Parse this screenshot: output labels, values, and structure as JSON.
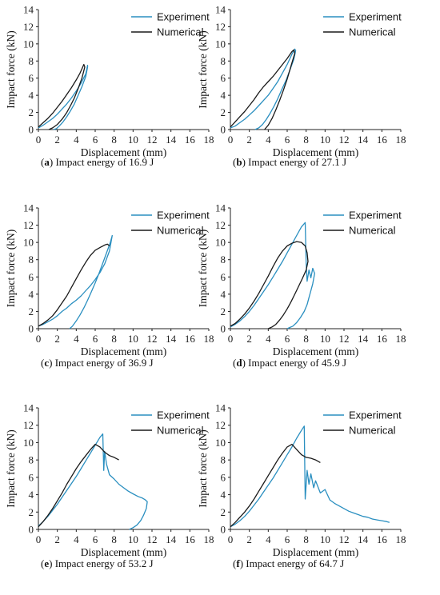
{
  "colors": {
    "experiment": "#2a8fc0",
    "numerical": "#1a1a1a",
    "axis": "#222222"
  },
  "chart_data": [
    {
      "type": "line",
      "tag": "(a)",
      "caption": "Impact energy of 16.9 J",
      "xlabel": "Displacement (mm)",
      "ylabel": "Impact force (kN)",
      "xlim": [
        0,
        18
      ],
      "ylim": [
        0,
        14
      ],
      "xticks": [
        "0",
        "2",
        "4",
        "6",
        "8",
        "10",
        "12",
        "14",
        "16",
        "18"
      ],
      "yticks": [
        "0",
        "2",
        "4",
        "6",
        "8",
        "10",
        "12",
        "14"
      ],
      "legend": "top-right",
      "series": [
        {
          "name": "Experiment",
          "x": [
            0,
            0.5,
            1,
            1.5,
            2,
            2.5,
            3,
            3.5,
            4,
            4.5,
            5,
            5.2,
            5.2,
            5,
            4.6,
            4.2,
            3.8,
            3.4,
            3,
            2.6,
            2.2,
            1.9,
            1.6
          ],
          "y": [
            0.2,
            0.5,
            0.9,
            1.3,
            1.8,
            2.4,
            3,
            3.7,
            4.5,
            5.4,
            6.5,
            7.5,
            7.3,
            6.2,
            5,
            4,
            3,
            2.2,
            1.5,
            0.9,
            0.4,
            0.1,
            0
          ]
        },
        {
          "name": "Numerical",
          "x": [
            0,
            0.5,
            1,
            1.5,
            2,
            2.5,
            3,
            3.5,
            4,
            4.4,
            4.8,
            4.9,
            4.6,
            4.2,
            3.8,
            3.4,
            3,
            2.5,
            2,
            1.5,
            1.1
          ],
          "y": [
            0.3,
            0.8,
            1.3,
            1.9,
            2.6,
            3.3,
            4.1,
            4.9,
            5.8,
            6.6,
            7.6,
            7.3,
            6,
            4.8,
            3.7,
            2.8,
            2,
            1.2,
            0.6,
            0.2,
            0
          ]
        }
      ]
    },
    {
      "type": "line",
      "tag": "(b)",
      "caption": "Impact energy of 27.1 J",
      "xlabel": "Displacement (mm)",
      "ylabel": "Impact force (kN)",
      "xlim": [
        0,
        18
      ],
      "ylim": [
        0,
        14
      ],
      "xticks": [
        "0",
        "2",
        "4",
        "6",
        "8",
        "10",
        "12",
        "14",
        "16",
        "18"
      ],
      "yticks": [
        "0",
        "2",
        "4",
        "6",
        "8",
        "10",
        "12",
        "14"
      ],
      "legend": "top-right",
      "series": [
        {
          "name": "Experiment",
          "x": [
            0,
            0.5,
            1,
            1.5,
            2,
            2.5,
            3,
            3.5,
            4,
            4.5,
            5,
            5.5,
            6,
            6.5,
            6.8,
            6.9,
            6.7,
            6.3,
            5.9,
            5.4,
            5,
            4.6,
            4.2,
            3.8,
            3.4,
            3,
            2.6
          ],
          "y": [
            0.2,
            0.4,
            0.8,
            1.2,
            1.7,
            2.2,
            2.8,
            3.4,
            4,
            4.8,
            5.6,
            6.6,
            7.6,
            8.8,
            9.4,
            9.2,
            8.2,
            7,
            5.8,
            4.6,
            3.6,
            2.7,
            1.9,
            1.2,
            0.6,
            0.2,
            0
          ]
        },
        {
          "name": "Numerical",
          "x": [
            0,
            0.5,
            1,
            1.5,
            2,
            2.5,
            3,
            3.5,
            4,
            4.5,
            5,
            5.5,
            6,
            6.5,
            6.7,
            6.8,
            6.4,
            6,
            5.6,
            5.2,
            4.8,
            4.4,
            4,
            3.6
          ],
          "y": [
            0.3,
            0.9,
            1.5,
            2.1,
            2.8,
            3.5,
            4.3,
            5,
            5.6,
            6.2,
            6.9,
            7.6,
            8.3,
            9.1,
            9.3,
            8.9,
            7.4,
            5.9,
            4.6,
            3.4,
            2.3,
            1.3,
            0.5,
            0
          ]
        }
      ]
    },
    {
      "type": "line",
      "tag": "(c)",
      "caption": "Impact energy of 36.9 J",
      "xlabel": "Displacement (mm)",
      "ylabel": "Impact force (kN)",
      "xlim": [
        0,
        18
      ],
      "ylim": [
        0,
        14
      ],
      "xticks": [
        "0",
        "2",
        "4",
        "6",
        "8",
        "10",
        "12",
        "14",
        "16",
        "18"
      ],
      "yticks": [
        "0",
        "2",
        "4",
        "6",
        "8",
        "10",
        "12",
        "14"
      ],
      "legend": "top-right",
      "series": [
        {
          "name": "Experiment",
          "x": [
            0,
            0.5,
            1,
            1.5,
            2,
            2.5,
            3,
            3.5,
            4,
            4.5,
            5,
            5.5,
            6,
            6.5,
            7,
            7.5,
            7.8,
            7.6,
            7.2,
            6.8,
            6.4,
            6,
            5.6,
            5.2,
            4.8,
            4.4,
            4,
            3.6,
            3.3
          ],
          "y": [
            0.3,
            0.5,
            0.8,
            1.1,
            1.5,
            2,
            2.4,
            2.9,
            3.3,
            3.8,
            4.4,
            5,
            5.7,
            6.5,
            7.5,
            9,
            10.8,
            10,
            8.8,
            7.6,
            6.4,
            5.3,
            4.3,
            3.3,
            2.4,
            1.6,
            0.9,
            0.3,
            0
          ]
        },
        {
          "name": "Numerical",
          "x": [
            0,
            0.5,
            1,
            1.5,
            2,
            2.5,
            3,
            3.5,
            4,
            4.5,
            5,
            5.5,
            6,
            6.5,
            7,
            7.3,
            7.5
          ],
          "y": [
            0.3,
            0.6,
            1,
            1.5,
            2.2,
            3,
            3.8,
            4.8,
            5.8,
            6.8,
            7.7,
            8.5,
            9.1,
            9.4,
            9.7,
            9.8,
            9.6
          ]
        }
      ]
    },
    {
      "type": "line",
      "tag": "(d)",
      "caption": "Impact energy of 45.9 J",
      "xlabel": "Displacement (mm)",
      "ylabel": "Impact force (kN)",
      "xlim": [
        0,
        18
      ],
      "ylim": [
        0,
        14
      ],
      "xticks": [
        "0",
        "2",
        "4",
        "6",
        "8",
        "10",
        "12",
        "14",
        "16",
        "18"
      ],
      "yticks": [
        "0",
        "2",
        "4",
        "6",
        "8",
        "10",
        "12",
        "14"
      ],
      "legend": "top-right",
      "series": [
        {
          "name": "Experiment",
          "x": [
            0,
            0.5,
            1,
            1.5,
            2,
            2.5,
            3,
            3.5,
            4,
            4.5,
            5,
            5.5,
            6,
            6.5,
            7,
            7.5,
            7.9,
            8,
            8.1,
            8.3,
            8.5,
            8.7,
            8.9,
            8.7,
            8.5,
            8.3,
            8.1,
            7.8,
            7.4,
            7,
            6.6,
            6.2,
            6
          ],
          "y": [
            0.2,
            0.5,
            0.9,
            1.4,
            2,
            2.7,
            3.5,
            4.3,
            5.1,
            6,
            6.9,
            7.8,
            8.8,
            9.8,
            10.8,
            11.8,
            12.3,
            7.6,
            5.5,
            6.8,
            5.9,
            7,
            6.4,
            5.2,
            4.4,
            3.6,
            2.8,
            2,
            1.3,
            0.7,
            0.3,
            0.1,
            0
          ]
        },
        {
          "name": "Numerical",
          "x": [
            0,
            0.5,
            1,
            1.5,
            2,
            2.5,
            3,
            3.5,
            4,
            4.5,
            5,
            5.5,
            6,
            6.5,
            7,
            7.5,
            7.9,
            8.1,
            8.2,
            8,
            7.6,
            7.2,
            6.8,
            6.4,
            6,
            5.6,
            5.2,
            4.8,
            4.4,
            4
          ],
          "y": [
            0.3,
            0.6,
            1.1,
            1.7,
            2.4,
            3.2,
            4.1,
            5.1,
            6.1,
            7.2,
            8.2,
            9,
            9.6,
            9.9,
            10.1,
            10,
            9.6,
            8.8,
            7.8,
            6.8,
            5.8,
            4.9,
            4,
            3.1,
            2.3,
            1.6,
            1,
            0.5,
            0.2,
            0
          ]
        }
      ]
    },
    {
      "type": "line",
      "tag": "(e)",
      "caption": "Impact energy of 53.2 J",
      "xlabel": "Displacement (mm)",
      "ylabel": "Impact force (kN)",
      "xlim": [
        0,
        18
      ],
      "ylim": [
        0,
        14
      ],
      "xticks": [
        "0",
        "2",
        "4",
        "6",
        "8",
        "10",
        "12",
        "14",
        "16",
        "18"
      ],
      "yticks": [
        "0",
        "2",
        "4",
        "6",
        "8",
        "10",
        "12",
        "14"
      ],
      "legend": "top-right",
      "series": [
        {
          "name": "Experiment",
          "x": [
            0,
            0.5,
            1,
            1.5,
            2,
            2.5,
            3,
            3.5,
            4,
            4.5,
            5,
            5.5,
            6,
            6.5,
            6.8,
            6.9,
            7,
            7.2,
            7.5,
            8,
            8.5,
            9,
            9.5,
            10,
            10.5,
            11,
            11.3,
            11.5,
            11.4,
            11.1,
            10.8,
            10.4,
            10,
            9.6
          ],
          "y": [
            0.4,
            0.9,
            1.5,
            2.2,
            2.9,
            3.7,
            4.5,
            5.3,
            6.1,
            7,
            7.9,
            8.8,
            9.7,
            10.6,
            11,
            6.8,
            9,
            7.5,
            6.3,
            5.8,
            5.2,
            4.8,
            4.4,
            4.1,
            3.8,
            3.6,
            3.4,
            3.2,
            2.4,
            1.6,
            1,
            0.5,
            0.2,
            0
          ]
        },
        {
          "name": "Numerical",
          "x": [
            0,
            0.5,
            1,
            1.5,
            2,
            2.5,
            3,
            3.5,
            4,
            4.5,
            5,
            5.5,
            6,
            6.5,
            7,
            7.5,
            8,
            8.5
          ],
          "y": [
            0.3,
            0.9,
            1.6,
            2.4,
            3.3,
            4.2,
            5.2,
            6.1,
            7,
            7.8,
            8.5,
            9.2,
            9.8,
            9.5,
            8.9,
            8.5,
            8.3,
            8
          ]
        }
      ]
    },
    {
      "type": "line",
      "tag": "(f)",
      "caption": "Impact energy of 64.7 J",
      "xlabel": "Displacement (mm)",
      "ylabel": "Impact force (kN)",
      "xlim": [
        0,
        18
      ],
      "ylim": [
        0,
        14
      ],
      "xticks": [
        "0",
        "2",
        "4",
        "6",
        "8",
        "10",
        "12",
        "14",
        "16",
        "18"
      ],
      "yticks": [
        "0",
        "2",
        "4",
        "6",
        "8",
        "10",
        "12",
        "14"
      ],
      "legend": "top-right",
      "series": [
        {
          "name": "Experiment",
          "x": [
            0,
            0.5,
            1,
            1.5,
            2,
            2.5,
            3,
            3.5,
            4,
            4.5,
            5,
            5.5,
            6,
            6.5,
            7,
            7.5,
            7.8,
            7.9,
            8.1,
            8.3,
            8.5,
            8.8,
            9,
            9.5,
            10,
            10.5,
            11,
            11.5,
            12,
            12.5,
            13,
            13.5,
            14,
            14.5,
            15,
            15.5,
            16,
            16.5,
            16.8
          ],
          "y": [
            0.3,
            0.6,
            1,
            1.5,
            2.1,
            2.8,
            3.5,
            4.3,
            5.1,
            5.9,
            6.8,
            7.7,
            8.6,
            9.5,
            10.5,
            11.4,
            11.9,
            3.5,
            6.8,
            5.2,
            6.4,
            4.8,
            5.6,
            4.2,
            4.6,
            3.4,
            3,
            2.7,
            2.4,
            2.1,
            1.9,
            1.7,
            1.5,
            1.4,
            1.2,
            1.1,
            1,
            0.9,
            0.8
          ]
        },
        {
          "name": "Numerical",
          "x": [
            0,
            0.5,
            1,
            1.5,
            2,
            2.5,
            3,
            3.5,
            4,
            4.5,
            5,
            5.5,
            6,
            6.5,
            7,
            7.5,
            8,
            8.5,
            9,
            9.5
          ],
          "y": [
            0.3,
            0.8,
            1.4,
            2,
            2.7,
            3.5,
            4.4,
            5.3,
            6.2,
            7.1,
            8,
            8.8,
            9.5,
            9.8,
            9.2,
            8.6,
            8.3,
            8.2,
            8,
            7.7
          ]
        }
      ]
    }
  ]
}
